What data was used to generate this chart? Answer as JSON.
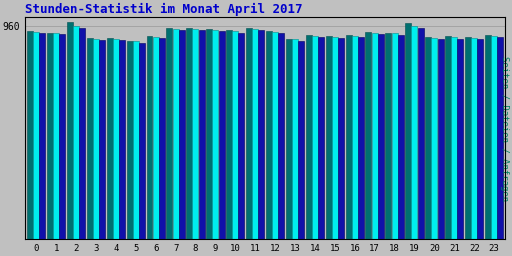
{
  "title": "Stunden-Statistik im Monat April 2017",
  "ylabel_right": "Seiten / Dateien / Anfragen",
  "hours": [
    0,
    1,
    2,
    3,
    4,
    5,
    6,
    7,
    8,
    9,
    10,
    11,
    12,
    13,
    14,
    15,
    16,
    17,
    18,
    19,
    20,
    21,
    22,
    23
  ],
  "bar_teal": [
    938,
    930,
    978,
    906,
    906,
    894,
    916,
    950,
    952,
    946,
    940,
    952,
    938,
    903,
    920,
    916,
    918,
    932,
    930,
    975,
    910,
    913,
    910,
    918
  ],
  "bar_cyan": [
    934,
    926,
    960,
    902,
    902,
    890,
    912,
    946,
    948,
    942,
    936,
    948,
    934,
    899,
    916,
    912,
    914,
    928,
    926,
    958,
    906,
    909,
    906,
    914
  ],
  "bar_blue": [
    928,
    922,
    952,
    896,
    896,
    884,
    906,
    940,
    942,
    936,
    930,
    942,
    928,
    893,
    910,
    906,
    908,
    922,
    920,
    950,
    900,
    903,
    900,
    908
  ],
  "bar_teal_color": "#007070",
  "bar_cyan_color": "#00EEEE",
  "bar_blue_color": "#1010AA",
  "bg_color": "#C0C0C0",
  "title_color": "#0000CC",
  "ylabel_right_color": "#008060",
  "ylim_min": 0,
  "ylim_max": 1000,
  "ytick_value": 960,
  "ytick_label": "960"
}
